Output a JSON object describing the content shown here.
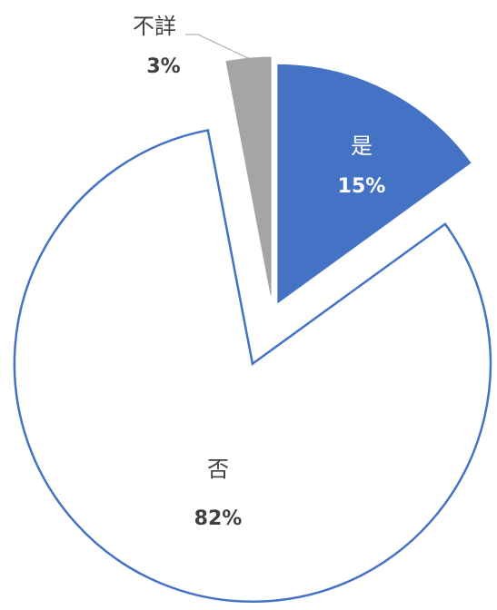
{
  "chart_data": {
    "type": "pie",
    "categories": [
      "是",
      "否",
      "不詳"
    ],
    "values": [
      15,
      82,
      3
    ],
    "value_labels": [
      "15%",
      "82%",
      "3%"
    ],
    "colors": [
      "#4472c4",
      "#ffffff",
      "#a5a5a5"
    ]
  }
}
